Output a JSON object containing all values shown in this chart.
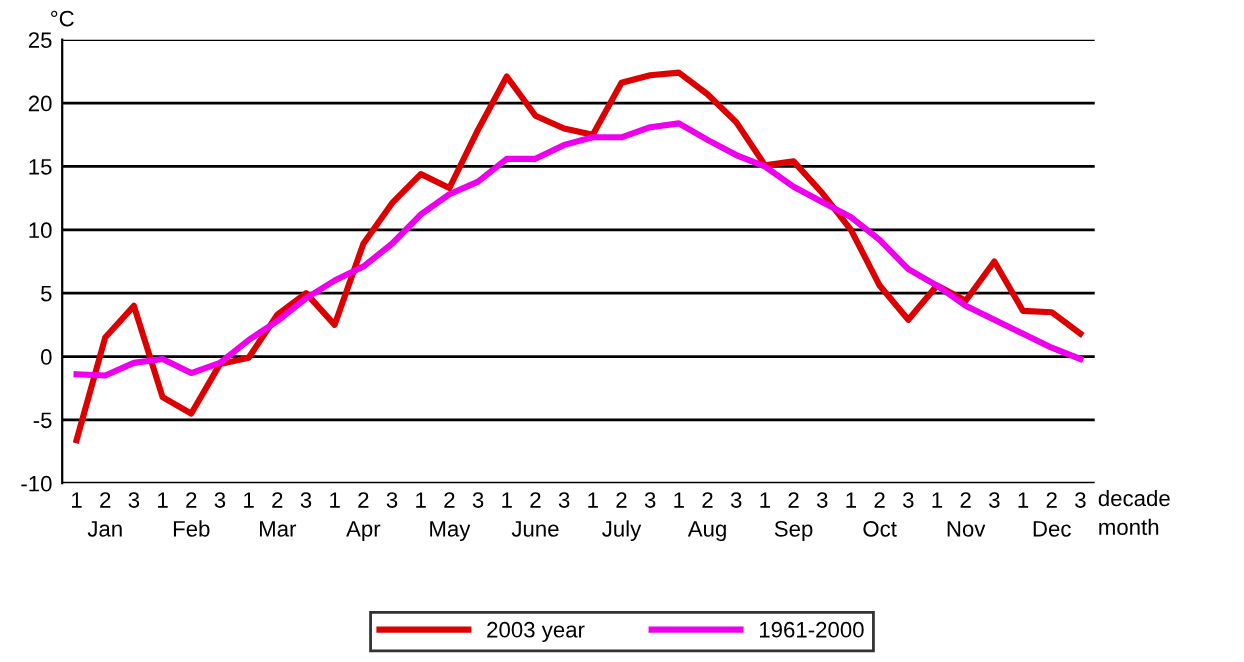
{
  "chart_data": {
    "type": "line",
    "ylabel": "°C",
    "xlabel": "decade\nmonth",
    "categories": [
      "1",
      "2\nJan",
      "3",
      "1",
      "2\nFeb",
      "3",
      "1",
      "2\nMar",
      "3",
      "1",
      "2\nApr",
      "3",
      "1",
      "2\nMay",
      "3",
      "1",
      "2\nJune",
      "3",
      "1",
      "2\nJuly",
      "3",
      "1",
      "2\nAug",
      "3",
      "1",
      "2\nSep",
      "3",
      "1",
      "2\nOct",
      "3",
      "1",
      "2\nNov",
      "3",
      "1",
      "2\nDec",
      "3"
    ],
    "series": [
      {
        "name": "2003 year",
        "color": "#dd0000",
        "values": [
          -6.6,
          1.5,
          4.0,
          -3.2,
          -4.5,
          -0.6,
          -0.1,
          3.3,
          5.0,
          2.5,
          8.9,
          12.1,
          14.4,
          13.3,
          17.9,
          22.1,
          19.0,
          18.0,
          17.5,
          21.6,
          22.2,
          22.4,
          20.7,
          18.5,
          15.1,
          15.4,
          12.9,
          10.0,
          5.6,
          2.9,
          5.6,
          4.4,
          7.5,
          3.6,
          3.5,
          1.8
        ]
      },
      {
        "name": "1961-2000",
        "color": "#ee00ee",
        "values": [
          -1.4,
          -1.5,
          -0.5,
          -0.2,
          -1.3,
          -0.5,
          1.3,
          2.8,
          4.6,
          6.0,
          7.1,
          8.9,
          11.2,
          12.8,
          13.8,
          15.6,
          15.6,
          16.7,
          17.3,
          17.3,
          18.1,
          18.4,
          17.1,
          15.9,
          15.0,
          13.4,
          12.2,
          11.0,
          9.2,
          6.9,
          5.6,
          4.0,
          2.9,
          1.8,
          0.7,
          -0.2
        ]
      }
    ],
    "ylim": [
      -10,
      25
    ],
    "yticks": [
      -10,
      -5,
      0,
      5,
      10,
      15,
      20,
      25
    ],
    "grid": "y",
    "legend": "bottom",
    "marker": "none",
    "line_style": "solid"
  }
}
